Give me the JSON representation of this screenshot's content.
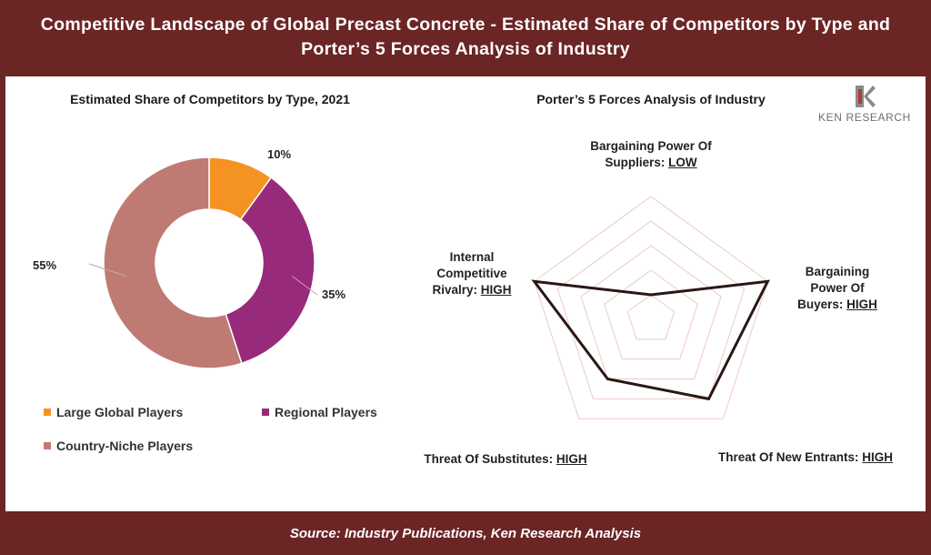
{
  "header": {
    "title": "Competitive Landscape of Global Precast Concrete - Estimated Share of Competitors by Type and Porter’s 5 Forces Analysis of Industry"
  },
  "footer": {
    "source": "Source: Industry Publications, Ken Research Analysis"
  },
  "logo": {
    "text": "KEN RESEARCH",
    "icon": "ken-research-logo-icon"
  },
  "colors": {
    "frame": "#6a2524",
    "large_global": "#f49322",
    "regional": "#982a7b",
    "country_niche": "#bf7a74",
    "radar_grid": "#ecc9c8",
    "radar_line": "#2a1714"
  },
  "chart_data": [
    {
      "type": "pie",
      "subtype": "donut",
      "title": "Estimated Share of Competitors by Type, 2021",
      "categories": [
        "Large Global Players",
        "Regional Players",
        "Country-Niche Players"
      ],
      "values": [
        10,
        35,
        55
      ],
      "labels": [
        "10%",
        "35%",
        "55%"
      ],
      "legend": "bottom"
    },
    {
      "type": "radar",
      "title": "Porter’s 5 Forces Analysis of Industry",
      "axes": [
        {
          "name": "Bargaining Power Of Suppliers:",
          "level": "LOW",
          "value": 1
        },
        {
          "name": "Bargaining Power Of Buyers:",
          "level": "HIGH",
          "value": 5
        },
        {
          "name": "Threat Of New Entrants:",
          "level": "HIGH",
          "value": 4
        },
        {
          "name": "Threat Of Substitutes:",
          "level": "HIGH",
          "value": 3
        },
        {
          "name": "Internal Competitive Rivalry:",
          "level": "HIGH",
          "value": 5
        }
      ],
      "scale_max": 5,
      "gridlines": 5
    }
  ]
}
